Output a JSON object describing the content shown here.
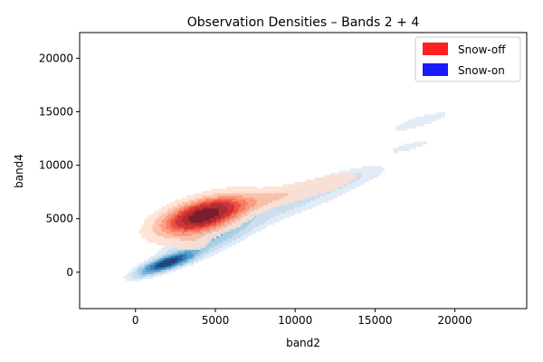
{
  "chart_data": {
    "type": "kde-contour",
    "title": "Observation Densities – Bands 2 + 4",
    "xlabel": "band2",
    "ylabel": "band4",
    "xlim": [
      -3500,
      24500
    ],
    "ylim": [
      -3400,
      22400
    ],
    "xticks": [
      0,
      5000,
      10000,
      15000,
      20000
    ],
    "yticks": [
      0,
      5000,
      10000,
      15000,
      20000
    ],
    "xtick_labels": [
      "0",
      "5000",
      "10000",
      "15000",
      "20000"
    ],
    "ytick_labels": [
      "0",
      "5000",
      "10000",
      "15000",
      "20000"
    ],
    "grid": false,
    "legend_position": "top-right",
    "series": [
      {
        "name": "Snow-off",
        "color": "#ff2020",
        "palette": [
          "#fee0d2",
          "#fcbba1",
          "#fc9272",
          "#fb6a4a",
          "#ef3b2c",
          "#cb181d",
          "#a50f15",
          "#67000d"
        ],
        "components": [
          {
            "mean": [
              4200,
              5300
            ],
            "sd": [
              1600,
              1100
            ],
            "rho": 0.55,
            "weight": 1.0
          },
          {
            "mean": [
              8500,
              7000
            ],
            "sd": [
              2800,
              1100
            ],
            "rho": 0.85,
            "weight": 0.16
          },
          {
            "mean": [
              12500,
              8700
            ],
            "sd": [
              1300,
              700
            ],
            "rho": 0.7,
            "weight": 0.05
          },
          {
            "mean": [
              3600,
              2700
            ],
            "sd": [
              700,
              500
            ],
            "rho": 0.3,
            "weight": 0.1
          },
          {
            "mean": [
              17800,
              14200
            ],
            "sd": [
              700,
              350
            ],
            "rho": 0.8,
            "weight": 0.05
          }
        ],
        "levels": [
          0.05,
          0.15,
          0.25,
          0.35,
          0.45,
          0.55,
          0.7,
          0.85
        ]
      },
      {
        "name": "Snow-on",
        "color": "#1a1aff",
        "palette": [
          "#deebf7",
          "#c6dbef",
          "#9ecae1",
          "#6baed6",
          "#4292c6",
          "#2171b5",
          "#08519c",
          "#08306b"
        ],
        "components": [
          {
            "mean": [
              2000,
              900
            ],
            "sd": [
              900,
              550
            ],
            "rho": 0.82,
            "weight": 1.0
          },
          {
            "mean": [
              4800,
              3200
            ],
            "sd": [
              1700,
              1300
            ],
            "rho": 0.85,
            "weight": 0.18
          },
          {
            "mean": [
              9000,
              6300
            ],
            "sd": [
              3000,
              1700
            ],
            "rho": 0.9,
            "weight": 0.07
          },
          {
            "mean": [
              13000,
              8600
            ],
            "sd": [
              1300,
              650
            ],
            "rho": 0.8,
            "weight": 0.04
          },
          {
            "mean": [
              17800,
              14100
            ],
            "sd": [
              1100,
              550
            ],
            "rho": 0.85,
            "weight": 0.035
          },
          {
            "mean": [
              17200,
              11800
            ],
            "sd": [
              800,
              380
            ],
            "rho": 0.85,
            "weight": 0.03
          },
          {
            "mean": [
              5500,
              4600
            ],
            "sd": [
              800,
              450
            ],
            "rho": 0.7,
            "weight": 0.07
          },
          {
            "mean": [
              10800,
              7600
            ],
            "sd": [
              900,
              400
            ],
            "rho": 0.7,
            "weight": 0.03
          }
        ],
        "levels": [
          0.012,
          0.04,
          0.1,
          0.18,
          0.3,
          0.45,
          0.62,
          0.8
        ]
      }
    ]
  }
}
